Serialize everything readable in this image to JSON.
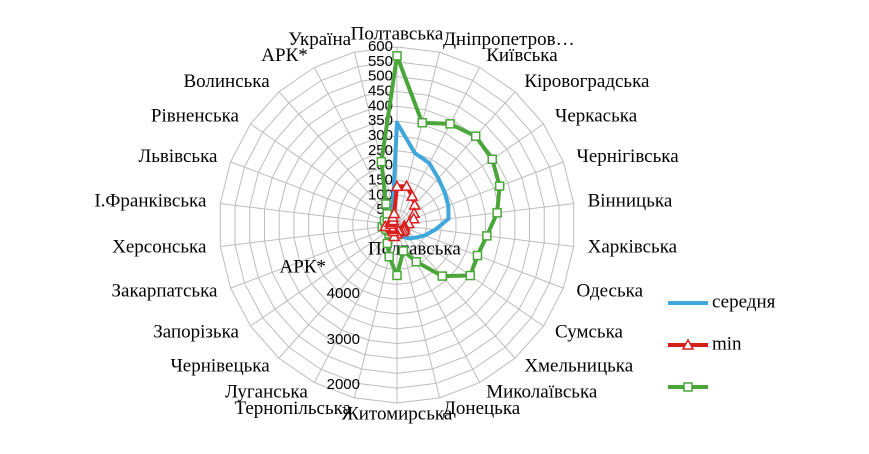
{
  "chart_data": {
    "type": "radar",
    "categories": [
      "Полтавська",
      "Дніпропетров…",
      "Київська",
      "Кіровоградська",
      "Черкаська",
      "Чернігівська",
      "Вінницька",
      "Харківська",
      "Одеська",
      "Сумська",
      "Хмельницька",
      "Миколаївська",
      "Донецька",
      "Житомирська",
      "Тернопільська",
      "Луганська",
      "Чернівецька",
      "Запорізька",
      "Закарпатська",
      "Херсонська",
      "І.Франківська",
      "Львівська",
      "Рівненська",
      "Волинська",
      "АРК*",
      "Україна"
    ],
    "series": [
      {
        "name": "середня",
        "color": "#3fa7dc",
        "marker": "none",
        "values": [
          345,
          250,
          235,
          210,
          195,
          185,
          175,
          130,
          100,
          75,
          60,
          45,
          40,
          35,
          30,
          30,
          30,
          30,
          35,
          35,
          35,
          35,
          40,
          40,
          45,
          60
        ]
      },
      {
        "color": "#4aa63a",
        "marker": "square",
        "values": [
          570,
          355,
          385,
          400,
          390,
          370,
          340,
          305,
          290,
          300,
          230,
          140,
          90,
          170,
          110,
          70,
          40,
          35,
          40,
          50,
          40,
          45,
          40,
          50,
          80,
          220
        ]
      },
      {
        "name": "min",
        "color": "#d91e1e",
        "marker": "triangle",
        "values": [
          130,
          135,
          110,
          90,
          70,
          60,
          40,
          25,
          25,
          30,
          30,
          25,
          20,
          30,
          40,
          25,
          20,
          20,
          20,
          40,
          20,
          25,
          20,
          20,
          30,
          40
        ]
      }
    ],
    "rlim": [
      0,
      600
    ],
    "rticks": [
      0,
      50,
      100,
      150,
      200,
      250,
      300,
      350,
      400,
      450,
      500,
      550,
      600
    ],
    "annotations": [
      "Полтавська",
      "АРК*",
      "4000",
      "3000",
      "2000"
    ],
    "grid": true
  }
}
